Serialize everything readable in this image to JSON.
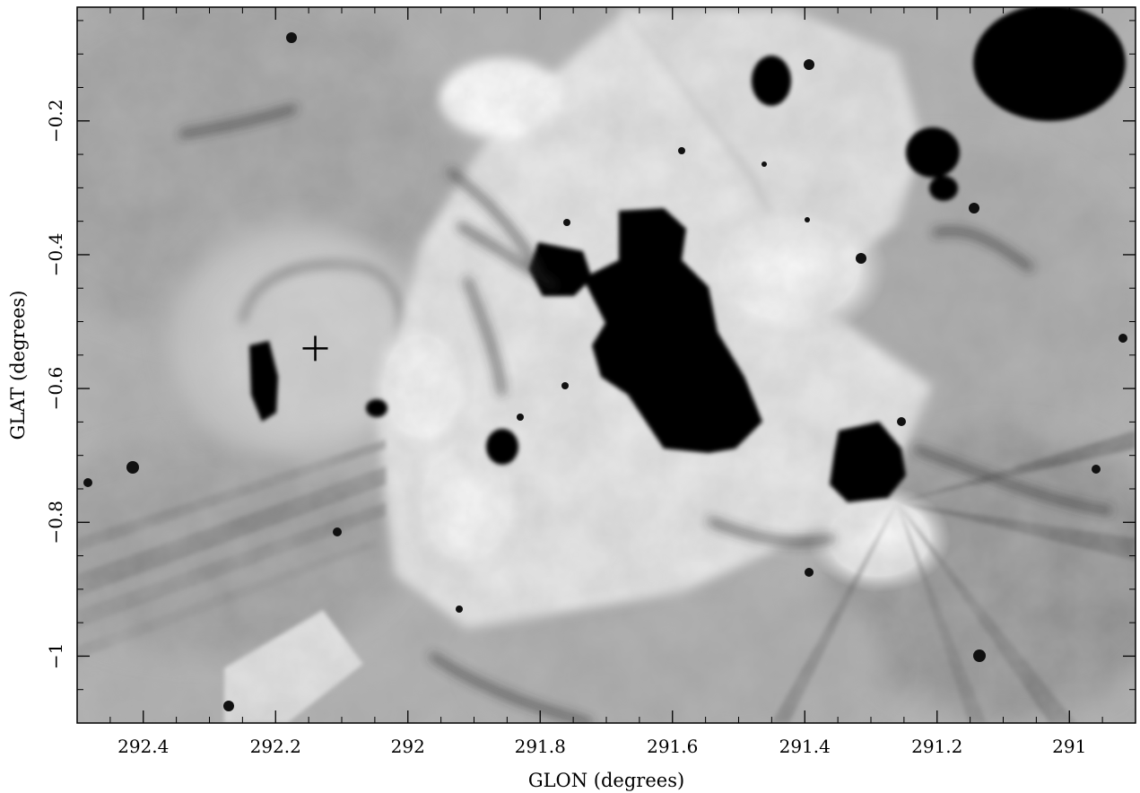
{
  "image": {
    "description_kind": "astronomical-grayscale-map",
    "colormap": "inverted-grayscale"
  },
  "axes": {
    "x": {
      "label": "GLON (degrees)",
      "range": [
        292.5,
        290.9
      ],
      "ticks": [
        {
          "value": 292.4,
          "label": "292.4"
        },
        {
          "value": 292.2,
          "label": "292.2"
        },
        {
          "value": 292.0,
          "label": "292"
        },
        {
          "value": 291.8,
          "label": "291.8"
        },
        {
          "value": 291.6,
          "label": "291.6"
        },
        {
          "value": 291.4,
          "label": "291.4"
        },
        {
          "value": 291.2,
          "label": "291.2"
        },
        {
          "value": 291.0,
          "label": "291"
        }
      ]
    },
    "y": {
      "label": "GLAT (degrees)",
      "range": [
        -1.1,
        -0.03
      ],
      "ticks": [
        {
          "value": -0.2,
          "label": "−0.2"
        },
        {
          "value": -0.4,
          "label": "−0.4"
        },
        {
          "value": -0.6,
          "label": "−0.6"
        },
        {
          "value": -0.8,
          "label": "−0.8"
        },
        {
          "value": -1.0,
          "label": "−1"
        }
      ]
    }
  },
  "marker": {
    "symbol": "plus",
    "glon": 292.14,
    "glat": -0.54
  }
}
